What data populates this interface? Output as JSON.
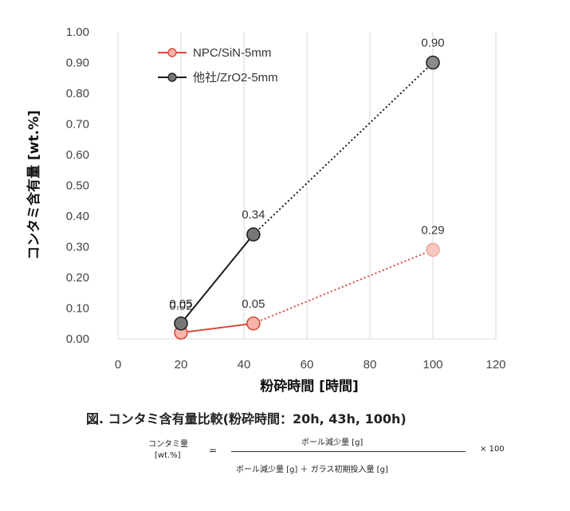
{
  "chart_data": {
    "type": "line",
    "xlabel": "粉砕時間 [時間]",
    "ylabel": "コンタミ含有量 [wt.%]",
    "xlim": [
      0,
      120
    ],
    "ylim": [
      0,
      1.0
    ],
    "xticks": [
      "0",
      "20",
      "40",
      "60",
      "80",
      "100",
      "120"
    ],
    "yticks": [
      "0.00",
      "0.10",
      "0.20",
      "0.30",
      "0.40",
      "0.50",
      "0.60",
      "0.70",
      "0.80",
      "0.90",
      "1.00"
    ],
    "grid": "vertical",
    "legend": "top-left",
    "series": [
      {
        "name": "NPC/SiN-5mm",
        "color": "#d94a3d",
        "x": [
          20,
          43,
          100
        ],
        "y": [
          0.02,
          0.05,
          0.29
        ],
        "labels": [
          "",
          "0.05",
          "0.29"
        ]
      },
      {
        "name": "他社/ZrO2-5mm",
        "color": "#1a1a1a",
        "x": [
          20,
          43,
          100
        ],
        "y": [
          0.05,
          0.34,
          0.9
        ],
        "labels": [
          "0.05",
          "0.34",
          "0.90"
        ]
      }
    ],
    "overlap_label": "0.02"
  },
  "caption": "図. コンタミ含有量比較(粉砕時間：20h, 43h, 100h)",
  "formula": {
    "lhs_line1": "コンタミ量",
    "lhs_line2": "[wt.%]",
    "equals": "=",
    "numerator": "ボール減少量 [g]",
    "denominator": "ボール減少量 [g] ＋ ガラス初期投入量 [g]",
    "multiplier": "× 100"
  }
}
